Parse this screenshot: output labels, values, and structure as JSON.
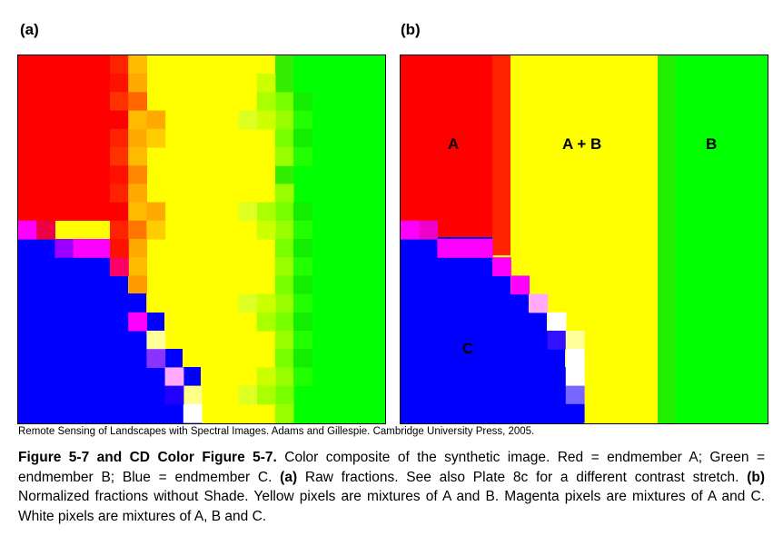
{
  "panels": {
    "a": {
      "label": "(a)"
    },
    "b": {
      "label": "(b)",
      "region_labels": [
        "A",
        "A + B",
        "B",
        "C"
      ]
    }
  },
  "colors": {
    "red": "#ff0000",
    "green": "#00ff00",
    "blue": "#0000ff",
    "yellow": "#ffff00",
    "magenta": "#ff00ff",
    "white": "#ffffff"
  },
  "credit": "Remote Sensing of Landscapes with Spectral Images.  Adams and Gillespie.  Cambridge University Press, 2005.",
  "caption": {
    "title": "Figure 5-7 and CD Color Figure 5-7.",
    "text1": "  Color composite of the synthetic image. Red = endmember A; Green = endmember B; Blue = endmember C.  ",
    "a_tag": "(a)",
    "text2": " Raw fractions.  See also Plate 8c for a different contrast stretch.  ",
    "b_tag": "(b)",
    "text3": " Normalized fractions without Shade.  Yellow pixels are mixtures of A and B.  Magenta pixels are mixtures of A and C.  White pixels are mixtures of A, B and C."
  }
}
